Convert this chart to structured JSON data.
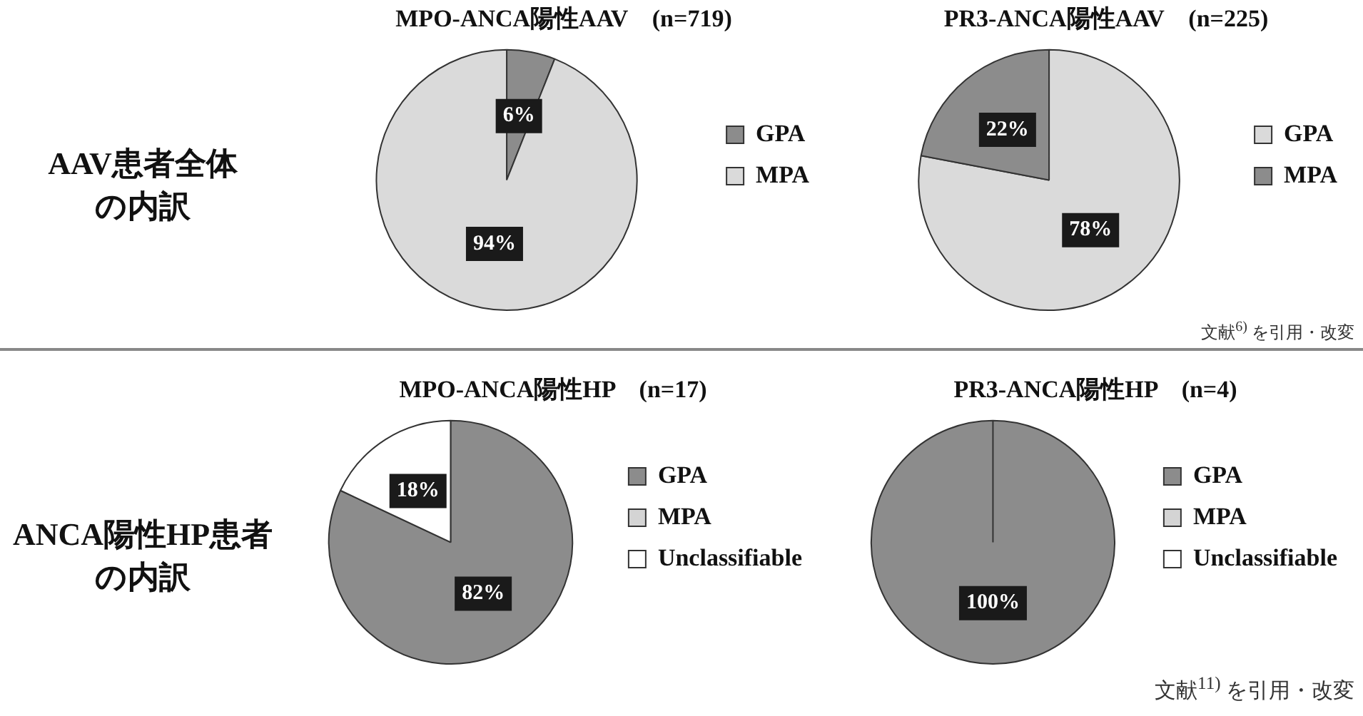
{
  "chart_data": [
    {
      "type": "other",
      "annotations": [
        "AAV患者全体",
        "の内訳"
      ]
    },
    {
      "type": "pie",
      "title": "MPO-ANCA陽性AAV　(n=719)",
      "categories": [
        "GPA",
        "MPA"
      ],
      "values": [
        6,
        94
      ],
      "colors": [
        "#8c8c8c",
        "#dadada"
      ],
      "value_labels": [
        "6%",
        "94%"
      ],
      "legend": "right"
    },
    {
      "type": "pie",
      "title": "PR3-ANCA陽性AAV　(n=225)",
      "categories": [
        "GPA",
        "MPA"
      ],
      "values": [
        78,
        22
      ],
      "colors": [
        "#dadada",
        "#8c8c8c"
      ],
      "value_labels": [
        "78%",
        "22%"
      ],
      "legend": "right",
      "annotations": [
        "文献$^{6)}$ を引用・改変"
      ]
    },
    {
      "type": "other",
      "annotations": [
        "ANCA陽性HP患者",
        "の内訳"
      ]
    },
    {
      "type": "pie",
      "title": "MPO-ANCA陽性HP　(n=17)",
      "categories": [
        "GPA",
        "MPA",
        "Unclassifiable"
      ],
      "values": [
        82,
        0,
        18
      ],
      "colors": [
        "#8c8c8c",
        "#d4d4d4",
        "#ffffff"
      ],
      "value_labels": [
        "82%",
        null,
        "18%"
      ],
      "legend": "right"
    },
    {
      "type": "pie",
      "title": "PR3-ANCA陽性HP　(n=4)",
      "categories": [
        "GPA",
        "MPA",
        "Unclassifiable"
      ],
      "values": [
        100,
        0,
        0
      ],
      "colors": [
        "#8c8c8c",
        "#d4d4d4",
        "#ffffff"
      ],
      "value_labels": [
        "100%",
        null,
        null
      ],
      "legend": "right",
      "annotations": [
        "文献$^{11)}$ を引用・改変"
      ]
    }
  ]
}
